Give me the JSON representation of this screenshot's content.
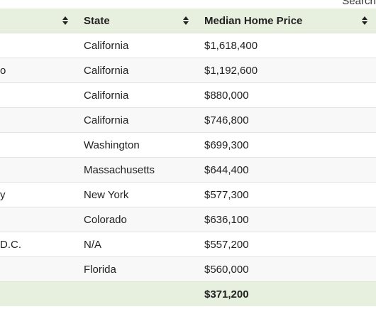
{
  "search": {
    "label": "Search:"
  },
  "table": {
    "headers": [
      "",
      "State",
      "Median Home Price"
    ],
    "rows": [
      {
        "city": "",
        "state": "California",
        "price": "$1,618,400"
      },
      {
        "city": "o",
        "state": "California",
        "price": "$1,192,600"
      },
      {
        "city": "",
        "state": "California",
        "price": "$880,000"
      },
      {
        "city": "",
        "state": "California",
        "price": "$746,800"
      },
      {
        "city": "",
        "state": "Washington",
        "price": "$699,300"
      },
      {
        "city": "",
        "state": "Massachusetts",
        "price": "$644,400"
      },
      {
        "city": "y",
        "state": "New York",
        "price": "$577,300"
      },
      {
        "city": "",
        "state": "Colorado",
        "price": "$636,100"
      },
      {
        "city": "D.C.",
        "state": "N/A",
        "price": "$557,200"
      },
      {
        "city": "",
        "state": "Florida",
        "price": "$560,000"
      }
    ],
    "footer": {
      "city": "",
      "state": "",
      "price": "$371,200"
    }
  }
}
